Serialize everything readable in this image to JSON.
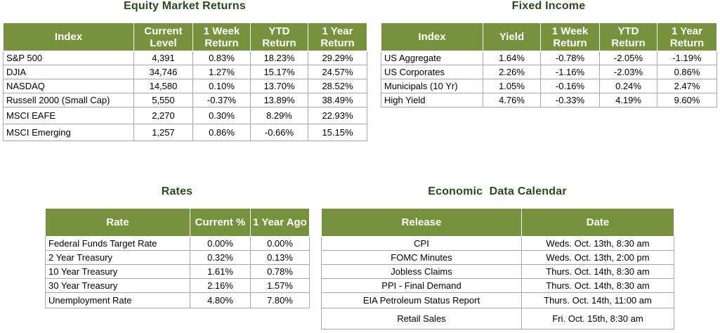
{
  "equity": {
    "title": "Equity Market Returns",
    "headers": [
      "Index",
      "Current Level",
      "1 Week Return",
      "YTD Return",
      "1 Year Return"
    ],
    "rows": [
      [
        "S&P 500",
        "4,391",
        "0.83%",
        "18.23%",
        "29.29%"
      ],
      [
        "DJIA",
        "34,746",
        "1.27%",
        "15.17%",
        "24.57%"
      ],
      [
        "NASDAQ",
        "14,580",
        "0.10%",
        "13.70%",
        "28.52%"
      ],
      [
        "Russell 2000 (Small Cap)",
        "5,550",
        "-0.37%",
        "13.89%",
        "38.49%"
      ],
      [
        "MSCI EAFE",
        "2,270",
        "0.30%",
        "8.29%",
        "22.93%"
      ],
      [
        "MSCI Emerging",
        "1,257",
        "0.86%",
        "-0.66%",
        "15.15%"
      ]
    ]
  },
  "fixed_income": {
    "title": "Fixed Income",
    "headers": [
      "Index",
      "Yield",
      "1 Week Return",
      "YTD Return",
      "1 Year Return"
    ],
    "rows": [
      [
        "US Aggregate",
        "1.64%",
        "-0.78%",
        "-2.05%",
        "-1.19%"
      ],
      [
        "US Corporates",
        "2.26%",
        "-1.16%",
        "-2.03%",
        "0.86%"
      ],
      [
        "Municipals (10 Yr)",
        "1.05%",
        "-0.16%",
        "0.24%",
        "2.47%"
      ],
      [
        "High Yield",
        "4.76%",
        "-0.33%",
        "4.19%",
        "9.60%"
      ]
    ]
  },
  "rates": {
    "title": "Rates",
    "headers": [
      "Rate",
      "Current %",
      "1 Year Ago"
    ],
    "rows": [
      [
        "Federal Funds Target Rate",
        "0.00%",
        "0.00%"
      ],
      [
        "2 Year Treasury",
        "0.32%",
        "0.13%"
      ],
      [
        "10 Year Treasury",
        "1.61%",
        "0.78%"
      ],
      [
        "30 Year Treasury",
        "2.16%",
        "1.57%"
      ],
      [
        "Unemployment Rate",
        "4.80%",
        "7.80%"
      ]
    ]
  },
  "calendar": {
    "title": "Economic  Data Calendar",
    "headers": [
      "Release",
      "Date"
    ],
    "rows": [
      [
        "CPI",
        "Weds. Oct. 13th, 8:30 am"
      ],
      [
        "FOMC Minutes",
        "Weds. Oct. 13th, 2:00 pm"
      ],
      [
        "Jobless Claims",
        "Thurs. Oct. 14th, 8:30 am"
      ],
      [
        "PPI - Final Demand",
        "Thurs. Oct. 14th, 8:30 am"
      ],
      [
        "EIA Petroleum Status Report",
        "Thurs. Oct. 14th, 11:00 am"
      ],
      [
        "Retail Sales",
        "Fri. Oct. 15th, 8:30 am"
      ]
    ]
  }
}
